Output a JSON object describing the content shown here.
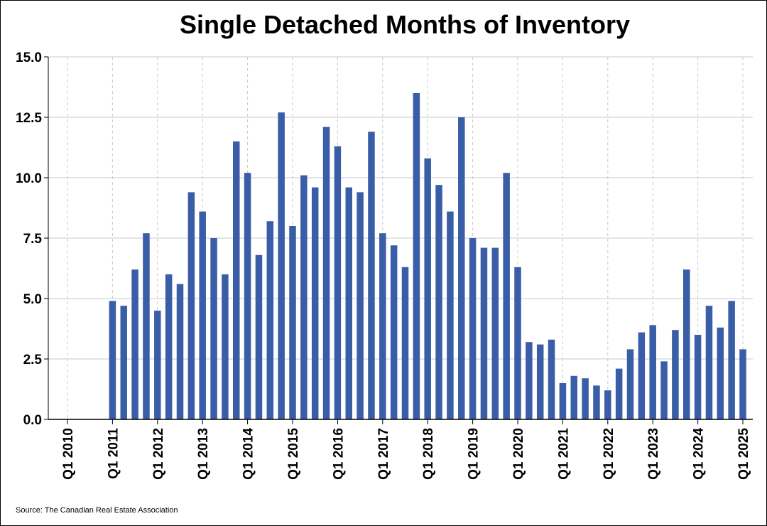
{
  "chart_data": {
    "type": "bar",
    "title": "Single Detached Months of Inventory",
    "source": "Source: The Canadian Real Estate Association",
    "xlabel": "",
    "ylabel": "",
    "ylim": [
      0,
      15
    ],
    "yticks": [
      "0.0",
      "2.5",
      "5.0",
      "7.5",
      "10.0",
      "12.5",
      "15.0"
    ],
    "xtick_labels": [
      "Q1 2010",
      "Q1 2011",
      "Q1 2012",
      "Q1 2013",
      "Q1 2014",
      "Q1 2015",
      "Q1 2016",
      "Q1 2017",
      "Q1 2018",
      "Q1 2019",
      "Q1 2020",
      "Q1 2021",
      "Q1 2022",
      "Q1 2023",
      "Q1 2024",
      "Q1 2025"
    ],
    "grid": "on",
    "bar_color": "#3a5da8",
    "categories": [
      "Q1 2010",
      "Q2 2010",
      "Q3 2010",
      "Q4 2010",
      "Q1 2011",
      "Q2 2011",
      "Q3 2011",
      "Q4 2011",
      "Q1 2012",
      "Q2 2012",
      "Q3 2012",
      "Q4 2012",
      "Q1 2013",
      "Q2 2013",
      "Q3 2013",
      "Q4 2013",
      "Q1 2014",
      "Q2 2014",
      "Q3 2014",
      "Q4 2014",
      "Q1 2015",
      "Q2 2015",
      "Q3 2015",
      "Q4 2015",
      "Q1 2016",
      "Q2 2016",
      "Q3 2016",
      "Q4 2016",
      "Q1 2017",
      "Q2 2017",
      "Q3 2017",
      "Q4 2017",
      "Q1 2018",
      "Q2 2018",
      "Q3 2018",
      "Q4 2018",
      "Q1 2019",
      "Q2 2019",
      "Q3 2019",
      "Q4 2019",
      "Q1 2020",
      "Q2 2020",
      "Q3 2020",
      "Q4 2020",
      "Q1 2021",
      "Q2 2021",
      "Q3 2021",
      "Q4 2021",
      "Q1 2022",
      "Q2 2022",
      "Q3 2022",
      "Q4 2022",
      "Q1 2023",
      "Q2 2023",
      "Q3 2023",
      "Q4 2023",
      "Q1 2024",
      "Q2 2024",
      "Q3 2024",
      "Q4 2024",
      "Q1 2025"
    ],
    "values": [
      null,
      null,
      null,
      null,
      4.9,
      4.7,
      6.2,
      7.7,
      4.5,
      6.0,
      5.6,
      9.4,
      8.6,
      7.5,
      6.0,
      11.5,
      10.2,
      6.8,
      8.2,
      12.7,
      8.0,
      10.1,
      9.6,
      12.1,
      11.3,
      9.6,
      9.4,
      11.9,
      7.7,
      7.2,
      6.3,
      13.5,
      10.8,
      9.7,
      8.6,
      12.5,
      7.5,
      7.1,
      7.1,
      10.2,
      6.3,
      3.2,
      3.1,
      3.3,
      1.5,
      1.8,
      1.7,
      1.4,
      1.2,
      2.1,
      2.9,
      3.6,
      3.9,
      2.4,
      3.7,
      6.2,
      3.5,
      4.7,
      3.8,
      4.9,
      2.9
    ]
  }
}
